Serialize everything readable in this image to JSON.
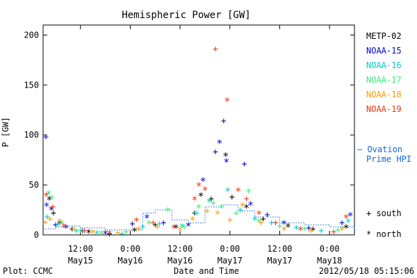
{
  "chart_data": {
    "type": "scatter",
    "title": "Hemispheric Power [GW]",
    "ylabel": "P [GW]",
    "xlabel": "Date and Time",
    "ylim": [
      0,
      210
    ],
    "xlim": [
      "2012-05-15 03:00",
      "2012-05-18 06:00"
    ],
    "x_ticks": [
      {
        "t": "2012-05-15 12:00",
        "top": "12:00",
        "bottom": "May15"
      },
      {
        "t": "2012-05-16 00:00",
        "top": "0:00",
        "bottom": "May16"
      },
      {
        "t": "2012-05-16 12:00",
        "top": "12:00",
        "bottom": "May16"
      },
      {
        "t": "2012-05-17 00:00",
        "top": "0:00",
        "bottom": "May17"
      },
      {
        "t": "2012-05-17 12:00",
        "top": "12:00",
        "bottom": "May17"
      },
      {
        "t": "2012-05-18 00:00",
        "top": "0:00",
        "bottom": "May18"
      }
    ],
    "y_ticks": [
      0,
      50,
      100,
      150,
      200
    ],
    "legend_location": "right",
    "series": [
      {
        "name": "METP-02",
        "color": "#000000",
        "points": [
          [
            "2012-05-15 04:30",
            36,
            "*"
          ],
          [
            "2012-05-15 05:30",
            22,
            "+"
          ],
          [
            "2012-05-15 07:00",
            12,
            "*"
          ],
          [
            "2012-05-15 10:00",
            6,
            "+"
          ],
          [
            "2012-05-15 14:00",
            3,
            "*"
          ],
          [
            "2012-05-15 19:00",
            1,
            "+"
          ],
          [
            "2012-05-16 01:00",
            5,
            "*"
          ],
          [
            "2012-05-16 06:00",
            10,
            "+"
          ],
          [
            "2012-05-16 11:00",
            8,
            "*"
          ],
          [
            "2012-05-16 15:30",
            22,
            "+"
          ],
          [
            "2012-05-16 17:00",
            40,
            "*"
          ],
          [
            "2012-05-16 19:30",
            36,
            "+"
          ],
          [
            "2012-05-16 23:00",
            80,
            "*"
          ],
          [
            "2012-05-17 00:30",
            38,
            "+"
          ],
          [
            "2012-05-17 04:00",
            28,
            "*"
          ],
          [
            "2012-05-17 08:00",
            16,
            "+"
          ],
          [
            "2012-05-17 14:00",
            9,
            "*"
          ],
          [
            "2012-05-17 20:00",
            6,
            "+"
          ],
          [
            "2012-05-18 04:00",
            8,
            "*"
          ]
        ]
      },
      {
        "name": "NOAA-15",
        "color": "#0000cc",
        "points": [
          [
            "2012-05-15 03:40",
            98,
            "+"
          ],
          [
            "2012-05-15 03:50",
            30,
            "*"
          ],
          [
            "2012-05-15 05:00",
            26,
            "*"
          ],
          [
            "2012-05-15 06:00",
            10,
            "+"
          ],
          [
            "2012-05-15 08:30",
            8,
            "*"
          ],
          [
            "2012-05-15 12:30",
            4,
            "+"
          ],
          [
            "2012-05-15 18:00",
            2,
            "*"
          ],
          [
            "2012-05-16 00:30",
            11,
            "+"
          ],
          [
            "2012-05-16 04:00",
            18,
            "*"
          ],
          [
            "2012-05-16 08:00",
            12,
            "+"
          ],
          [
            "2012-05-16 14:00",
            10,
            "*"
          ],
          [
            "2012-05-16 17:30",
            55,
            "*"
          ],
          [
            "2012-05-16 20:30",
            83,
            "+"
          ],
          [
            "2012-05-16 21:30",
            93,
            "*"
          ],
          [
            "2012-05-16 22:30",
            114,
            "+"
          ],
          [
            "2012-05-16 23:10",
            74,
            "*"
          ],
          [
            "2012-05-17 03:30",
            71,
            "+"
          ],
          [
            "2012-05-17 05:00",
            31,
            "*"
          ],
          [
            "2012-05-17 09:00",
            20,
            "+"
          ],
          [
            "2012-05-17 13:00",
            12,
            "*"
          ],
          [
            "2012-05-17 19:00",
            7,
            "+"
          ],
          [
            "2012-05-18 03:00",
            12,
            "+"
          ],
          [
            "2012-05-18 05:00",
            20,
            "*"
          ]
        ]
      },
      {
        "name": "NOAA-16",
        "color": "#00cccc",
        "points": [
          [
            "2012-05-15 04:00",
            18,
            "+"
          ],
          [
            "2012-05-15 06:30",
            10,
            "*"
          ],
          [
            "2012-05-15 11:00",
            4,
            "+"
          ],
          [
            "2012-05-15 16:00",
            2,
            "*"
          ],
          [
            "2012-05-15 22:00",
            1,
            "+"
          ],
          [
            "2012-05-16 03:00",
            8,
            "*"
          ],
          [
            "2012-05-16 07:00",
            11,
            "+"
          ],
          [
            "2012-05-16 12:30",
            9,
            "*"
          ],
          [
            "2012-05-16 16:00",
            22,
            "+"
          ],
          [
            "2012-05-16 19:00",
            34,
            "*"
          ],
          [
            "2012-05-16 23:30",
            45,
            "*"
          ],
          [
            "2012-05-17 02:30",
            25,
            "+"
          ],
          [
            "2012-05-17 06:00",
            16,
            "*"
          ],
          [
            "2012-05-17 10:00",
            12,
            "+"
          ],
          [
            "2012-05-17 16:00",
            7,
            "*"
          ],
          [
            "2012-05-17 22:00",
            4,
            "+"
          ],
          [
            "2012-05-18 04:30",
            14,
            "*"
          ]
        ]
      },
      {
        "name": "NOAA-17",
        "color": "#33ee77",
        "points": [
          [
            "2012-05-15 04:20",
            42,
            "*"
          ],
          [
            "2012-05-15 05:10",
            38,
            "+"
          ],
          [
            "2012-05-15 07:30",
            12,
            "*"
          ],
          [
            "2012-05-15 12:00",
            5,
            "+"
          ],
          [
            "2012-05-15 17:00",
            2,
            "*"
          ],
          [
            "2012-05-15 23:00",
            3,
            "+"
          ],
          [
            "2012-05-16 04:30",
            12,
            "*"
          ],
          [
            "2012-05-16 09:00",
            25,
            "*"
          ],
          [
            "2012-05-16 13:00",
            8,
            "+"
          ],
          [
            "2012-05-16 16:30",
            28,
            "*"
          ],
          [
            "2012-05-16 20:00",
            32,
            "+"
          ],
          [
            "2012-05-16 22:00",
            28,
            "*"
          ],
          [
            "2012-05-17 01:30",
            22,
            "+"
          ],
          [
            "2012-05-17 04:30",
            44,
            "+"
          ],
          [
            "2012-05-17 07:00",
            14,
            "*"
          ],
          [
            "2012-05-17 12:00",
            9,
            "+"
          ],
          [
            "2012-05-17 18:00",
            6,
            "*"
          ],
          [
            "2012-05-18 02:00",
            5,
            "+"
          ]
        ]
      },
      {
        "name": "NOAA-18",
        "color": "#ff9900",
        "points": [
          [
            "2012-05-15 03:30",
            12,
            "*"
          ],
          [
            "2012-05-15 04:40",
            16,
            "+"
          ],
          [
            "2012-05-15 07:00",
            14,
            "*"
          ],
          [
            "2012-05-15 10:30",
            6,
            "+"
          ],
          [
            "2012-05-15 15:00",
            3,
            "*"
          ],
          [
            "2012-05-15 21:00",
            2,
            "+"
          ],
          [
            "2012-05-16 02:00",
            6,
            "*"
          ],
          [
            "2012-05-16 06:30",
            8,
            "+"
          ],
          [
            "2012-05-16 12:00",
            6,
            "*"
          ],
          [
            "2012-05-16 15:00",
            16,
            "*"
          ],
          [
            "2012-05-16 18:30",
            24,
            "+"
          ],
          [
            "2012-05-16 21:00",
            22,
            "*"
          ],
          [
            "2012-05-17 00:00",
            15,
            "+"
          ],
          [
            "2012-05-17 03:00",
            30,
            "*"
          ],
          [
            "2012-05-17 07:30",
            12,
            "+"
          ],
          [
            "2012-05-17 13:00",
            6,
            "*"
          ],
          [
            "2012-05-17 19:30",
            4,
            "+"
          ],
          [
            "2012-05-18 03:00",
            6,
            "*"
          ]
        ]
      },
      {
        "name": "NOAA-19",
        "color": "#ee3311",
        "points": [
          [
            "2012-05-15 03:45",
            40,
            "*"
          ],
          [
            "2012-05-15 05:20",
            28,
            "+"
          ],
          [
            "2012-05-15 08:00",
            9,
            "*"
          ],
          [
            "2012-05-15 13:00",
            4,
            "+"
          ],
          [
            "2012-05-15 19:00",
            2,
            "*"
          ],
          [
            "2012-05-16 01:30",
            15,
            "*"
          ],
          [
            "2012-05-16 05:30",
            12,
            "+"
          ],
          [
            "2012-05-16 10:30",
            8,
            "*"
          ],
          [
            "2012-05-16 15:30",
            36,
            "*"
          ],
          [
            "2012-05-16 16:30",
            50,
            "*"
          ],
          [
            "2012-05-16 18:00",
            46,
            "*"
          ],
          [
            "2012-05-16 20:30",
            186,
            "+"
          ],
          [
            "2012-05-16 23:20",
            135,
            "*"
          ],
          [
            "2012-05-17 02:00",
            45,
            "*"
          ],
          [
            "2012-05-17 04:00",
            36,
            "+"
          ],
          [
            "2012-05-17 07:00",
            22,
            "*"
          ],
          [
            "2012-05-17 11:00",
            12,
            "+"
          ],
          [
            "2012-05-17 17:00",
            6,
            "*"
          ],
          [
            "2012-05-18 01:00",
            3,
            "+"
          ],
          [
            "2012-05-18 04:00",
            18,
            "*"
          ]
        ]
      }
    ],
    "ovation": {
      "name_line1": "— Ovation",
      "name_line2": "Prime HPI",
      "color": "#1166dd",
      "points": [
        [
          "2012-05-15 03:00",
          6
        ],
        [
          "2012-05-15 06:00",
          8
        ],
        [
          "2012-05-15 09:00",
          9
        ],
        [
          "2012-05-15 12:00",
          7
        ],
        [
          "2012-05-15 18:00",
          5
        ],
        [
          "2012-05-16 00:00",
          5
        ],
        [
          "2012-05-16 03:00",
          22
        ],
        [
          "2012-05-16 06:00",
          25
        ],
        [
          "2012-05-16 10:00",
          15
        ],
        [
          "2012-05-16 14:00",
          12
        ],
        [
          "2012-05-16 18:00",
          28
        ],
        [
          "2012-05-16 22:00",
          30
        ],
        [
          "2012-05-17 02:00",
          24
        ],
        [
          "2012-05-17 06:00",
          18
        ],
        [
          "2012-05-17 12:00",
          12
        ],
        [
          "2012-05-17 18:00",
          10
        ],
        [
          "2012-05-18 00:00",
          8
        ],
        [
          "2012-05-18 06:00",
          6
        ]
      ]
    },
    "marker_key": [
      {
        "symbol": "+",
        "label": "south"
      },
      {
        "symbol": "*",
        "label": "north"
      }
    ]
  },
  "footer": {
    "left": "Plot: CCMC",
    "center": "Date and Time",
    "right": "2012/05/18 05:15:06"
  }
}
